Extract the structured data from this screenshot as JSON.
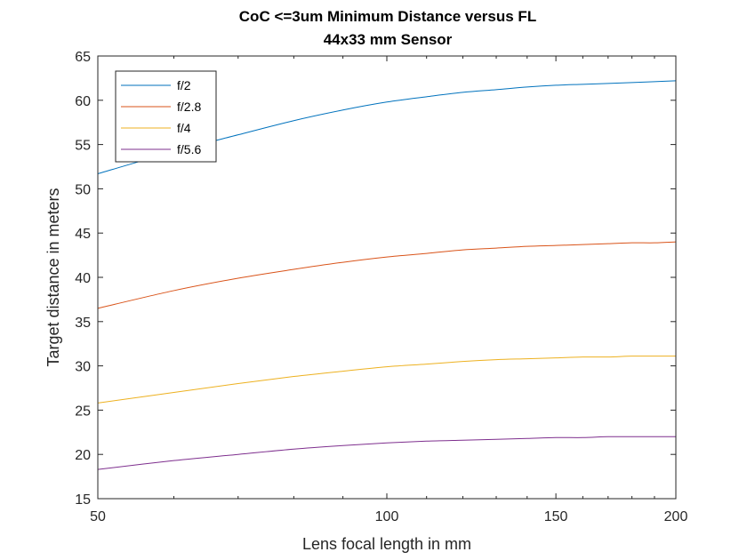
{
  "chart_data": {
    "type": "line",
    "title": "CoC <=3um Minimum Distance versus FL",
    "subtitle": "44x33 mm Sensor",
    "xlabel": "Lens focal length in mm",
    "ylabel": "Target distance in meters",
    "x_scale": "log",
    "xlim": [
      50,
      200
    ],
    "ylim": [
      15,
      65
    ],
    "x_ticks": [
      50,
      100,
      150,
      200
    ],
    "x_tick_labels": [
      "50",
      "100",
      "150",
      "200"
    ],
    "y_ticks": [
      15,
      20,
      25,
      30,
      35,
      40,
      45,
      50,
      55,
      60,
      65
    ],
    "y_tick_labels": [
      "15",
      "20",
      "25",
      "30",
      "35",
      "40",
      "45",
      "50",
      "55",
      "60",
      "65"
    ],
    "grid": false,
    "legend_location": "top-left",
    "x": [
      50,
      60,
      70,
      80,
      90,
      100,
      110,
      120,
      130,
      140,
      150,
      160,
      170,
      180,
      190,
      200
    ],
    "series": [
      {
        "name": "f/2",
        "color": "#0072BD",
        "values": [
          51.7,
          54.2,
          56.1,
          57.7,
          58.9,
          59.8,
          60.4,
          60.9,
          61.2,
          61.5,
          61.7,
          61.8,
          61.9,
          62.0,
          62.1,
          62.2
        ]
      },
      {
        "name": "f/2.8",
        "color": "#D95319",
        "values": [
          36.5,
          38.5,
          39.9,
          40.9,
          41.7,
          42.3,
          42.7,
          43.1,
          43.3,
          43.5,
          43.6,
          43.7,
          43.8,
          43.9,
          43.9,
          44.0
        ]
      },
      {
        "name": "f/4",
        "color": "#EDB120",
        "values": [
          25.8,
          27.0,
          28.0,
          28.8,
          29.4,
          29.9,
          30.2,
          30.5,
          30.7,
          30.8,
          30.9,
          31.0,
          31.0,
          31.1,
          31.1,
          31.1
        ]
      },
      {
        "name": "f/5.6",
        "color": "#7E2F8E",
        "values": [
          18.3,
          19.3,
          20.0,
          20.6,
          21.0,
          21.3,
          21.5,
          21.6,
          21.7,
          21.8,
          21.9,
          21.9,
          22.0,
          22.0,
          22.0,
          22.0
        ]
      }
    ]
  }
}
